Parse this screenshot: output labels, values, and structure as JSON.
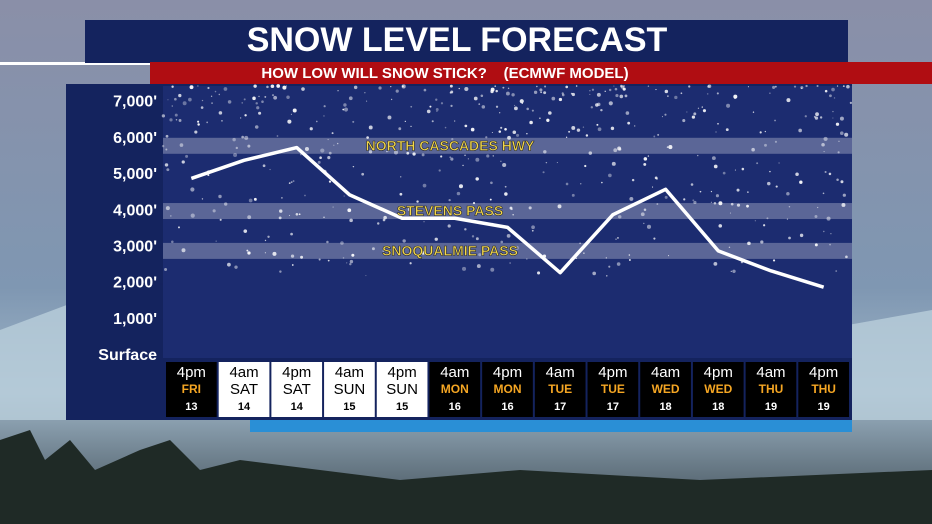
{
  "chart_data": {
    "type": "line",
    "title": "SNOW LEVEL FORECAST",
    "subtitle": "HOW LOW WILL SNOW STICK?    (ECMWF MODEL)",
    "categories": [
      {
        "time": "4pm",
        "day": "FRI",
        "date": "13"
      },
      {
        "time": "4am",
        "day": "SAT",
        "date": "14"
      },
      {
        "time": "4pm",
        "day": "SAT",
        "date": "14"
      },
      {
        "time": "4am",
        "day": "SUN",
        "date": "15"
      },
      {
        "time": "4pm",
        "day": "SUN",
        "date": "15"
      },
      {
        "time": "4am",
        "day": "MON",
        "date": "16"
      },
      {
        "time": "4pm",
        "day": "MON",
        "date": "16"
      },
      {
        "time": "4am",
        "day": "TUE",
        "date": "17"
      },
      {
        "time": "4pm",
        "day": "TUE",
        "date": "17"
      },
      {
        "time": "4am",
        "day": "WED",
        "date": "18"
      },
      {
        "time": "4pm",
        "day": "WED",
        "date": "18"
      },
      {
        "time": "4am",
        "day": "THU",
        "date": "19"
      },
      {
        "time": "4pm",
        "day": "THU",
        "date": "19"
      }
    ],
    "column_styles": [
      "dark",
      "light",
      "light",
      "light",
      "light",
      "dark",
      "dark",
      "dark",
      "dark",
      "dark",
      "dark",
      "dark",
      "dark"
    ],
    "values": [
      4900,
      5400,
      5750,
      4450,
      3800,
      3800,
      3550,
      2300,
      3900,
      4600,
      2900,
      2350,
      1900
    ],
    "color": "#ffffff",
    "ylim": [
      0,
      7450
    ],
    "yticks": [
      {
        "value": 0,
        "label": "Surface"
      },
      {
        "value": 1000,
        "label": "1,000'"
      },
      {
        "value": 2000,
        "label": "2,000'"
      },
      {
        "value": 3000,
        "label": "3,000'"
      },
      {
        "value": 4000,
        "label": "4,000'"
      },
      {
        "value": 5000,
        "label": "5,000'"
      },
      {
        "value": 6000,
        "label": "6,000'"
      },
      {
        "value": 7000,
        "label": "7,000'"
      }
    ],
    "bands": [
      {
        "label": "NORTH CASCADES HWY",
        "value": 5800
      },
      {
        "label": "STEVENS PASS",
        "value": 4000
      },
      {
        "label": "SNOQUALMIE PASS",
        "value": 2900
      }
    ]
  }
}
